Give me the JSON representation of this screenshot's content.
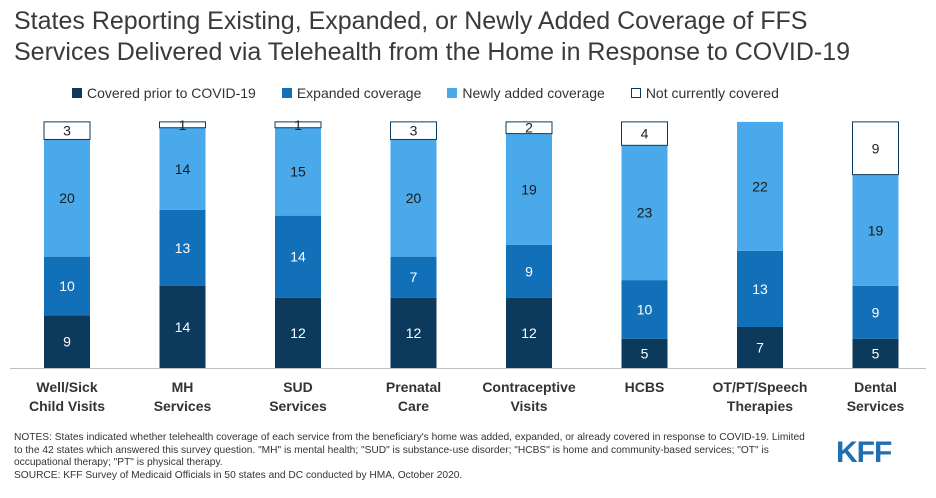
{
  "title_line1": "States Reporting Existing, Expanded, or Newly Added Coverage of FFS",
  "title_line2": "Services Delivered via Telehealth from the Home in Response to COVID-19",
  "colors": {
    "covered_prior": "#0b3a5c",
    "expanded": "#1270b8",
    "newly_added": "#49a9eb",
    "not_covered": "#ffffff"
  },
  "chart_data": {
    "type": "bar",
    "stacked": true,
    "categories": [
      [
        "Well/Sick",
        "Child Visits"
      ],
      [
        "MH",
        "Services"
      ],
      [
        "SUD",
        "Services"
      ],
      [
        "Prenatal",
        "Care"
      ],
      [
        "Contraceptive",
        "Visits"
      ],
      [
        "HCBS"
      ],
      [
        "OT/PT/Speech",
        "Therapies"
      ],
      [
        "Dental",
        "Services"
      ]
    ],
    "series": [
      {
        "name": "Covered prior to COVID-19",
        "color": "#0b3a5c",
        "values": [
          9,
          14,
          12,
          12,
          12,
          5,
          7,
          5
        ]
      },
      {
        "name": "Expanded coverage",
        "color": "#1270b8",
        "values": [
          10,
          13,
          14,
          7,
          9,
          10,
          13,
          9
        ]
      },
      {
        "name": "Newly added coverage",
        "color": "#49a9eb",
        "values": [
          20,
          14,
          15,
          20,
          19,
          23,
          22,
          19
        ]
      },
      {
        "name": "Not currently covered",
        "color": "#ffffff",
        "values": [
          3,
          1,
          1,
          3,
          2,
          4,
          0,
          9
        ]
      }
    ],
    "ylim": [
      0,
      42
    ],
    "legend_position": "top",
    "grid": false
  },
  "notes": "NOTES: States indicated whether telehealth  coverage of each service from the beneficiary's home was added, expanded, or already covered in response to COVID-19. Limited to the 42 states which answered this survey question. \"MH\" is mental health; \"SUD\" is substance-use disorder; \"HCBS\" is home and community-based services; \"OT\" is occupational therapy; \"PT\" is physical therapy.",
  "source": "SOURCE: KFF Survey of Medicaid Officials in 50 states and DC conducted by HMA, October 2020.",
  "logo_text": "KFF"
}
